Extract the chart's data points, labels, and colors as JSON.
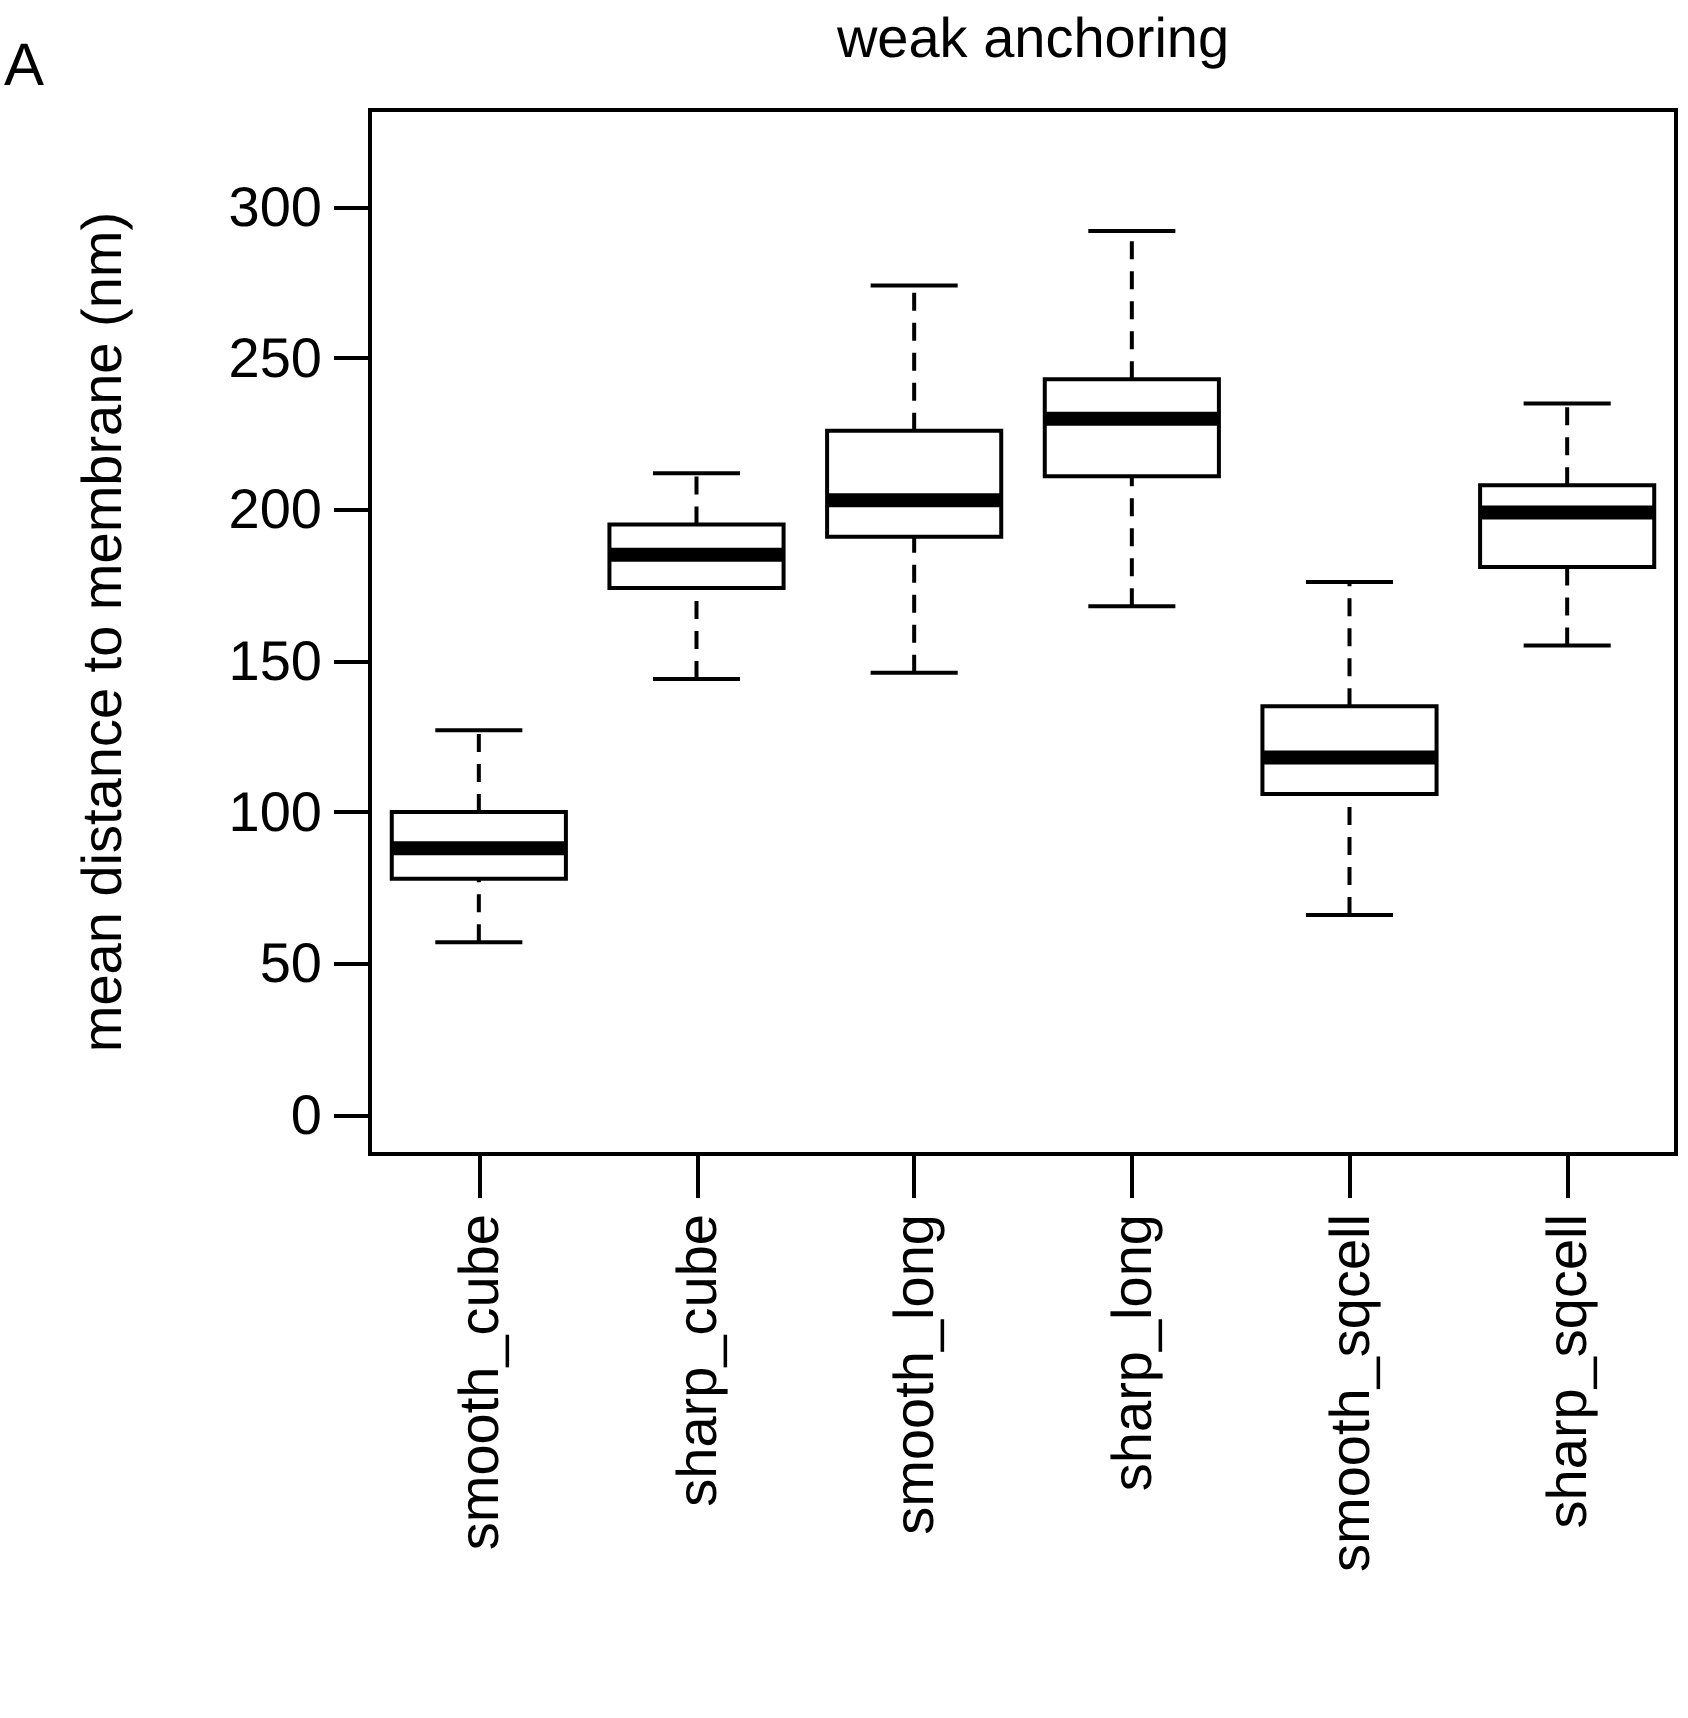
{
  "chart_data": {
    "type": "box",
    "title": "weak anchoring",
    "ylabel": "mean distance to membrane (nm)",
    "annotations": [
      "A"
    ],
    "categories": [
      "smooth_cube",
      "sharp_cube",
      "smooth_long",
      "sharp_long",
      "smooth_sqcell",
      "sharp_sqcell"
    ],
    "boxes": [
      {
        "low": 57,
        "q1": 78,
        "median": 88,
        "q3": 100,
        "high": 127
      },
      {
        "low": 144,
        "q1": 174,
        "median": 185,
        "q3": 195,
        "high": 212
      },
      {
        "low": 146,
        "q1": 191,
        "median": 203,
        "q3": 226,
        "high": 274
      },
      {
        "low": 168,
        "q1": 211,
        "median": 230,
        "q3": 243,
        "high": 292
      },
      {
        "low": 66,
        "q1": 106,
        "median": 118,
        "q3": 135,
        "high": 176
      },
      {
        "low": 155,
        "q1": 181,
        "median": 199,
        "q3": 208,
        "high": 235
      }
    ],
    "color": "#000000",
    "ylim": [
      -13,
      332
    ],
    "yticks": [
      0,
      50,
      100,
      150,
      200,
      250,
      300
    ],
    "grid": false,
    "line_style": "dashed"
  }
}
